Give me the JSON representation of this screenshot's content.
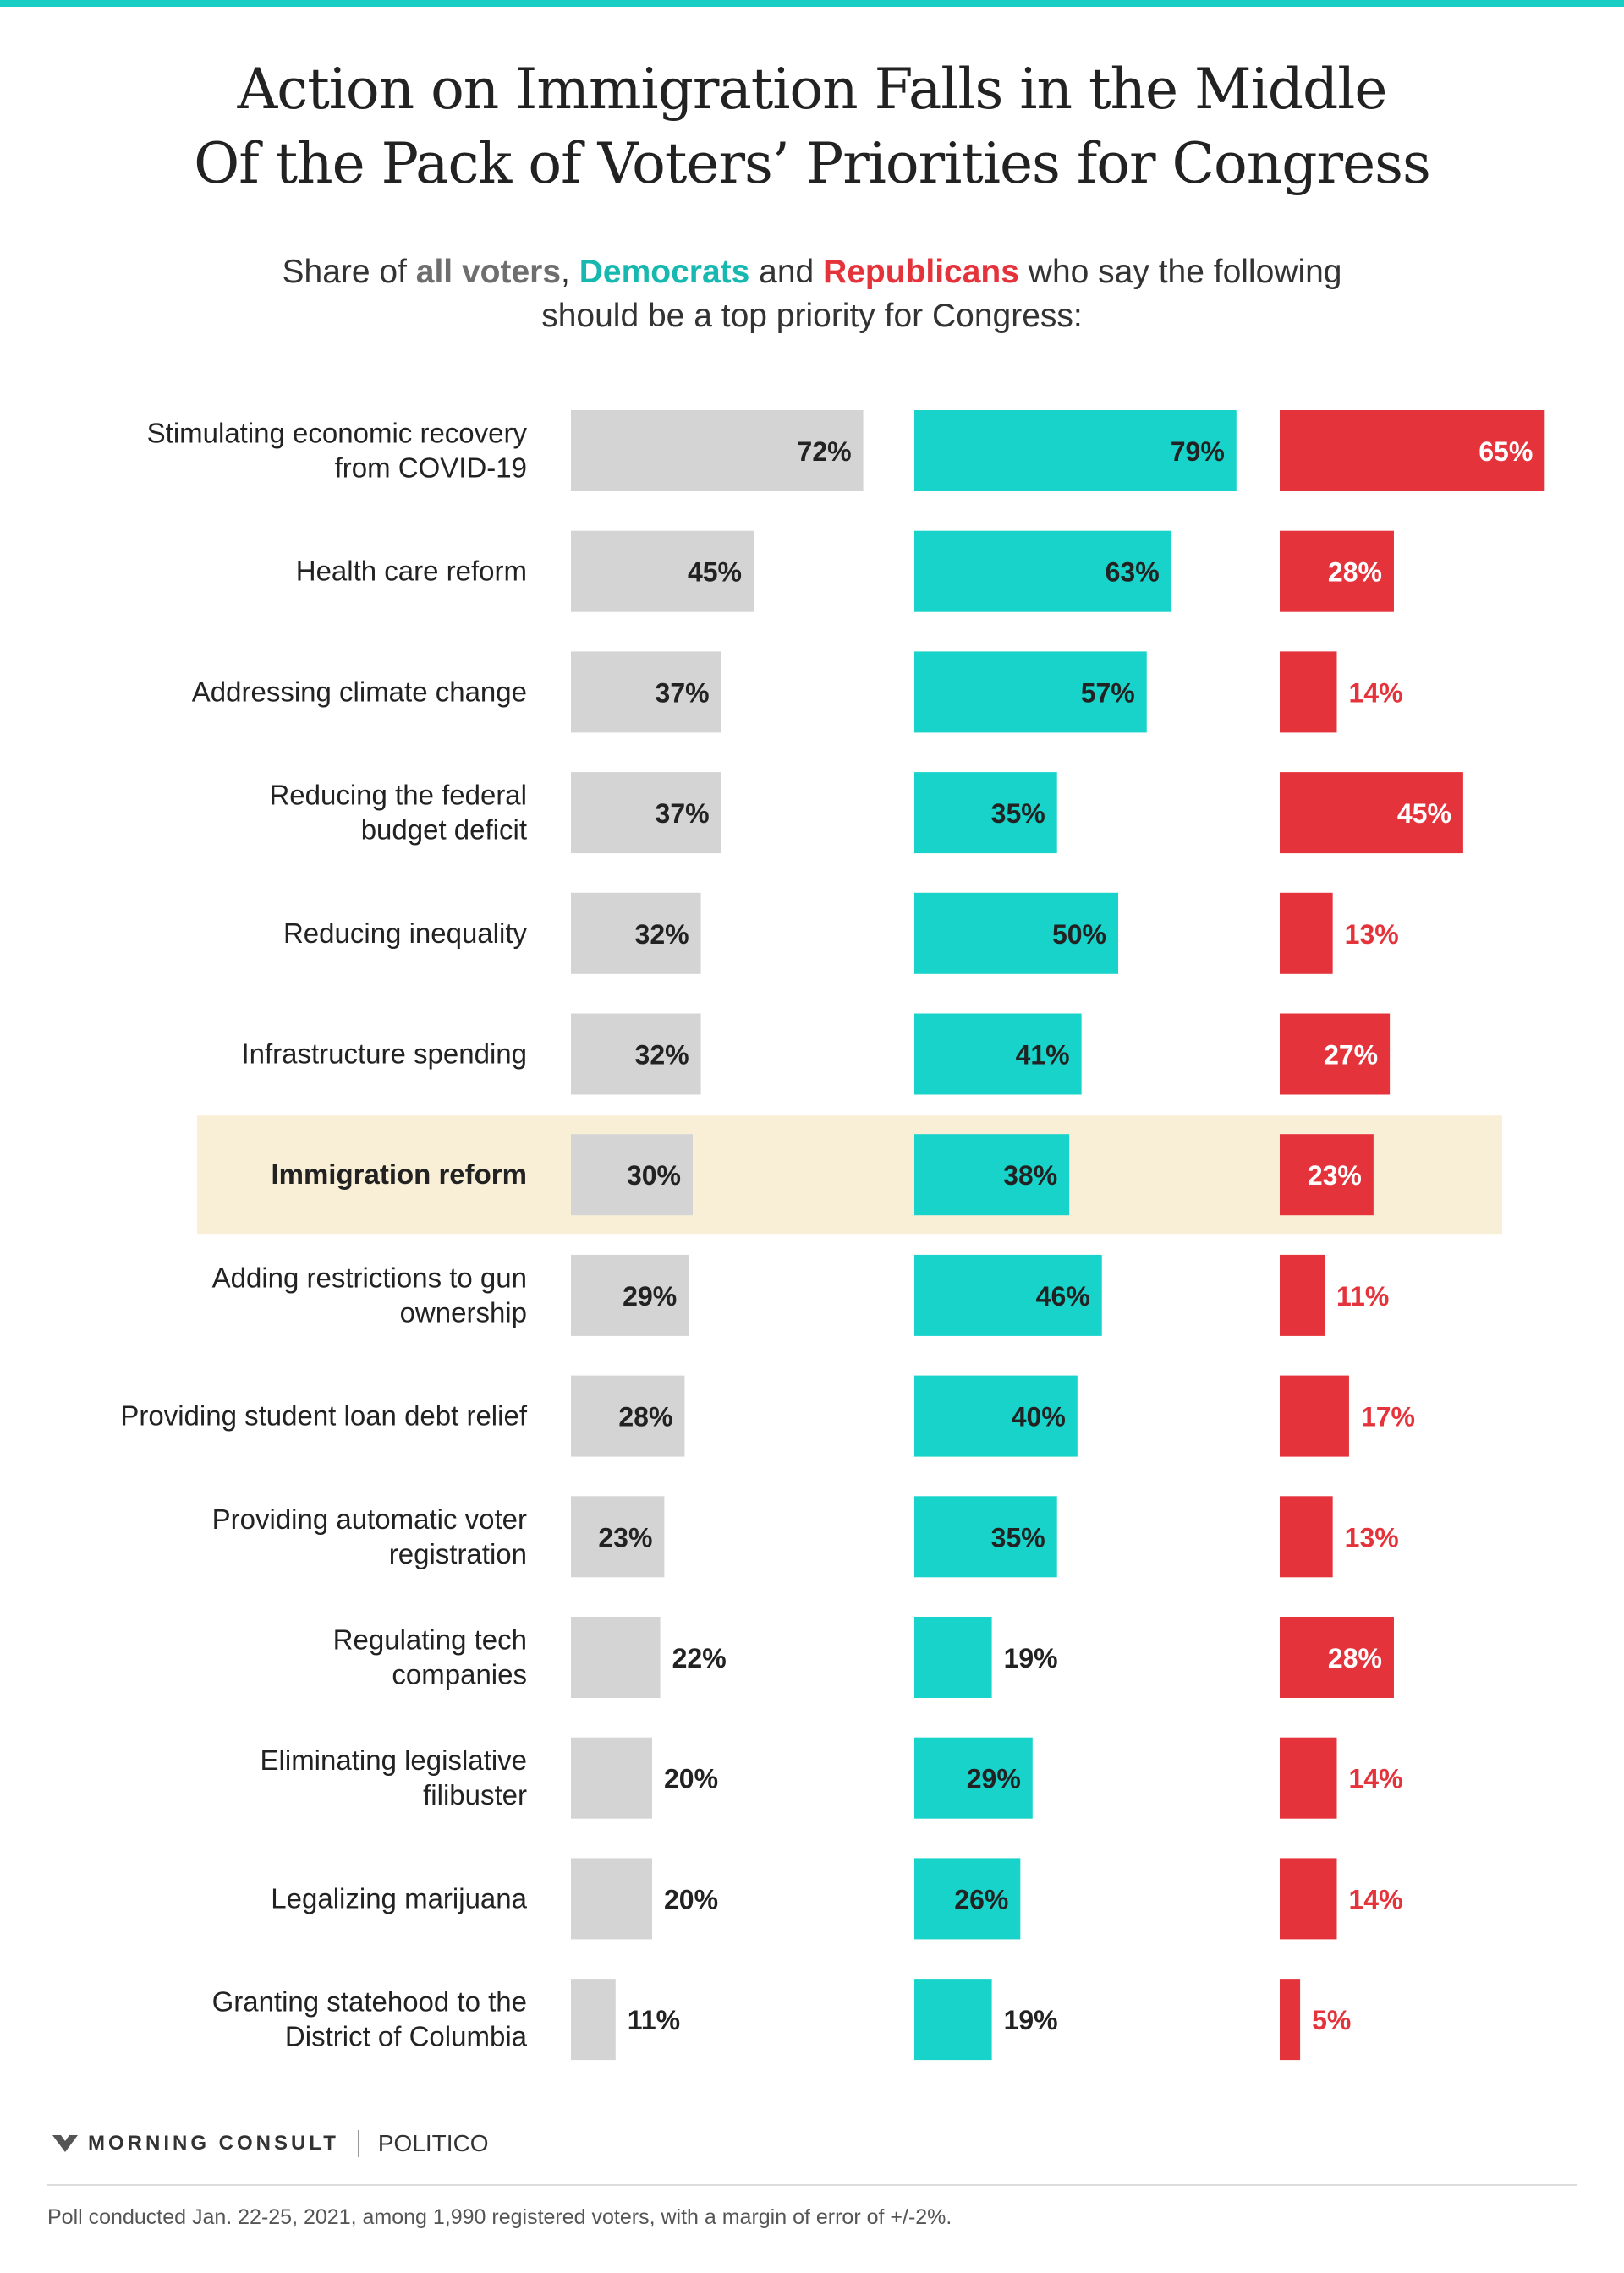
{
  "title_line1": "Action on Immigration Falls in the Middle",
  "title_line2": "Of the Pack of Voters’ Priorities for Congress",
  "subtitle": {
    "part1": "Share of ",
    "all": "all voters",
    "part2": ", ",
    "dem": "Democrats",
    "part3": " and ",
    "rep": "Republicans",
    "part4": " who say the following",
    "line2": "should be a top priority for Congress:"
  },
  "colors": {
    "all": "#d4d4d4",
    "dem": "#17d3ca",
    "rep": "#e5333b",
    "highlight": "#f8efd6",
    "accent": "#17cdc4"
  },
  "chart_data": {
    "type": "bar",
    "orientation": "horizontal",
    "categories": [
      [
        "Stimulating economic recovery",
        "from COVID-19"
      ],
      [
        "Health care reform"
      ],
      [
        "Addressing climate change"
      ],
      [
        "Reducing the federal",
        "budget deficit"
      ],
      [
        "Reducing inequality"
      ],
      [
        "Infrastructure spending"
      ],
      [
        "Immigration reform"
      ],
      [
        "Adding restrictions to gun",
        "ownership"
      ],
      [
        "Providing student loan debt relief"
      ],
      [
        "Providing automatic voter",
        "registration"
      ],
      [
        "Regulating tech",
        "companies"
      ],
      [
        "Eliminating legislative",
        "filibuster"
      ],
      [
        "Legalizing marijuana"
      ],
      [
        "Granting statehood to the",
        "District of Columbia"
      ]
    ],
    "highlight_index": 6,
    "series": [
      {
        "name": "all voters",
        "values": [
          72,
          45,
          37,
          37,
          32,
          32,
          30,
          29,
          28,
          23,
          22,
          20,
          20,
          11
        ]
      },
      {
        "name": "Democrats",
        "values": [
          79,
          63,
          57,
          35,
          50,
          41,
          38,
          46,
          40,
          35,
          19,
          29,
          26,
          19
        ]
      },
      {
        "name": "Republicans",
        "values": [
          65,
          28,
          14,
          45,
          13,
          27,
          23,
          11,
          17,
          13,
          28,
          14,
          14,
          5
        ]
      }
    ],
    "value_suffix": "%"
  },
  "footer": {
    "morning_consult": "MORNING CONSULT",
    "politico": "POLITICO",
    "note": "Poll conducted Jan. 22-25, 2021, among 1,990 registered voters, with a margin of error of +/-2%."
  }
}
